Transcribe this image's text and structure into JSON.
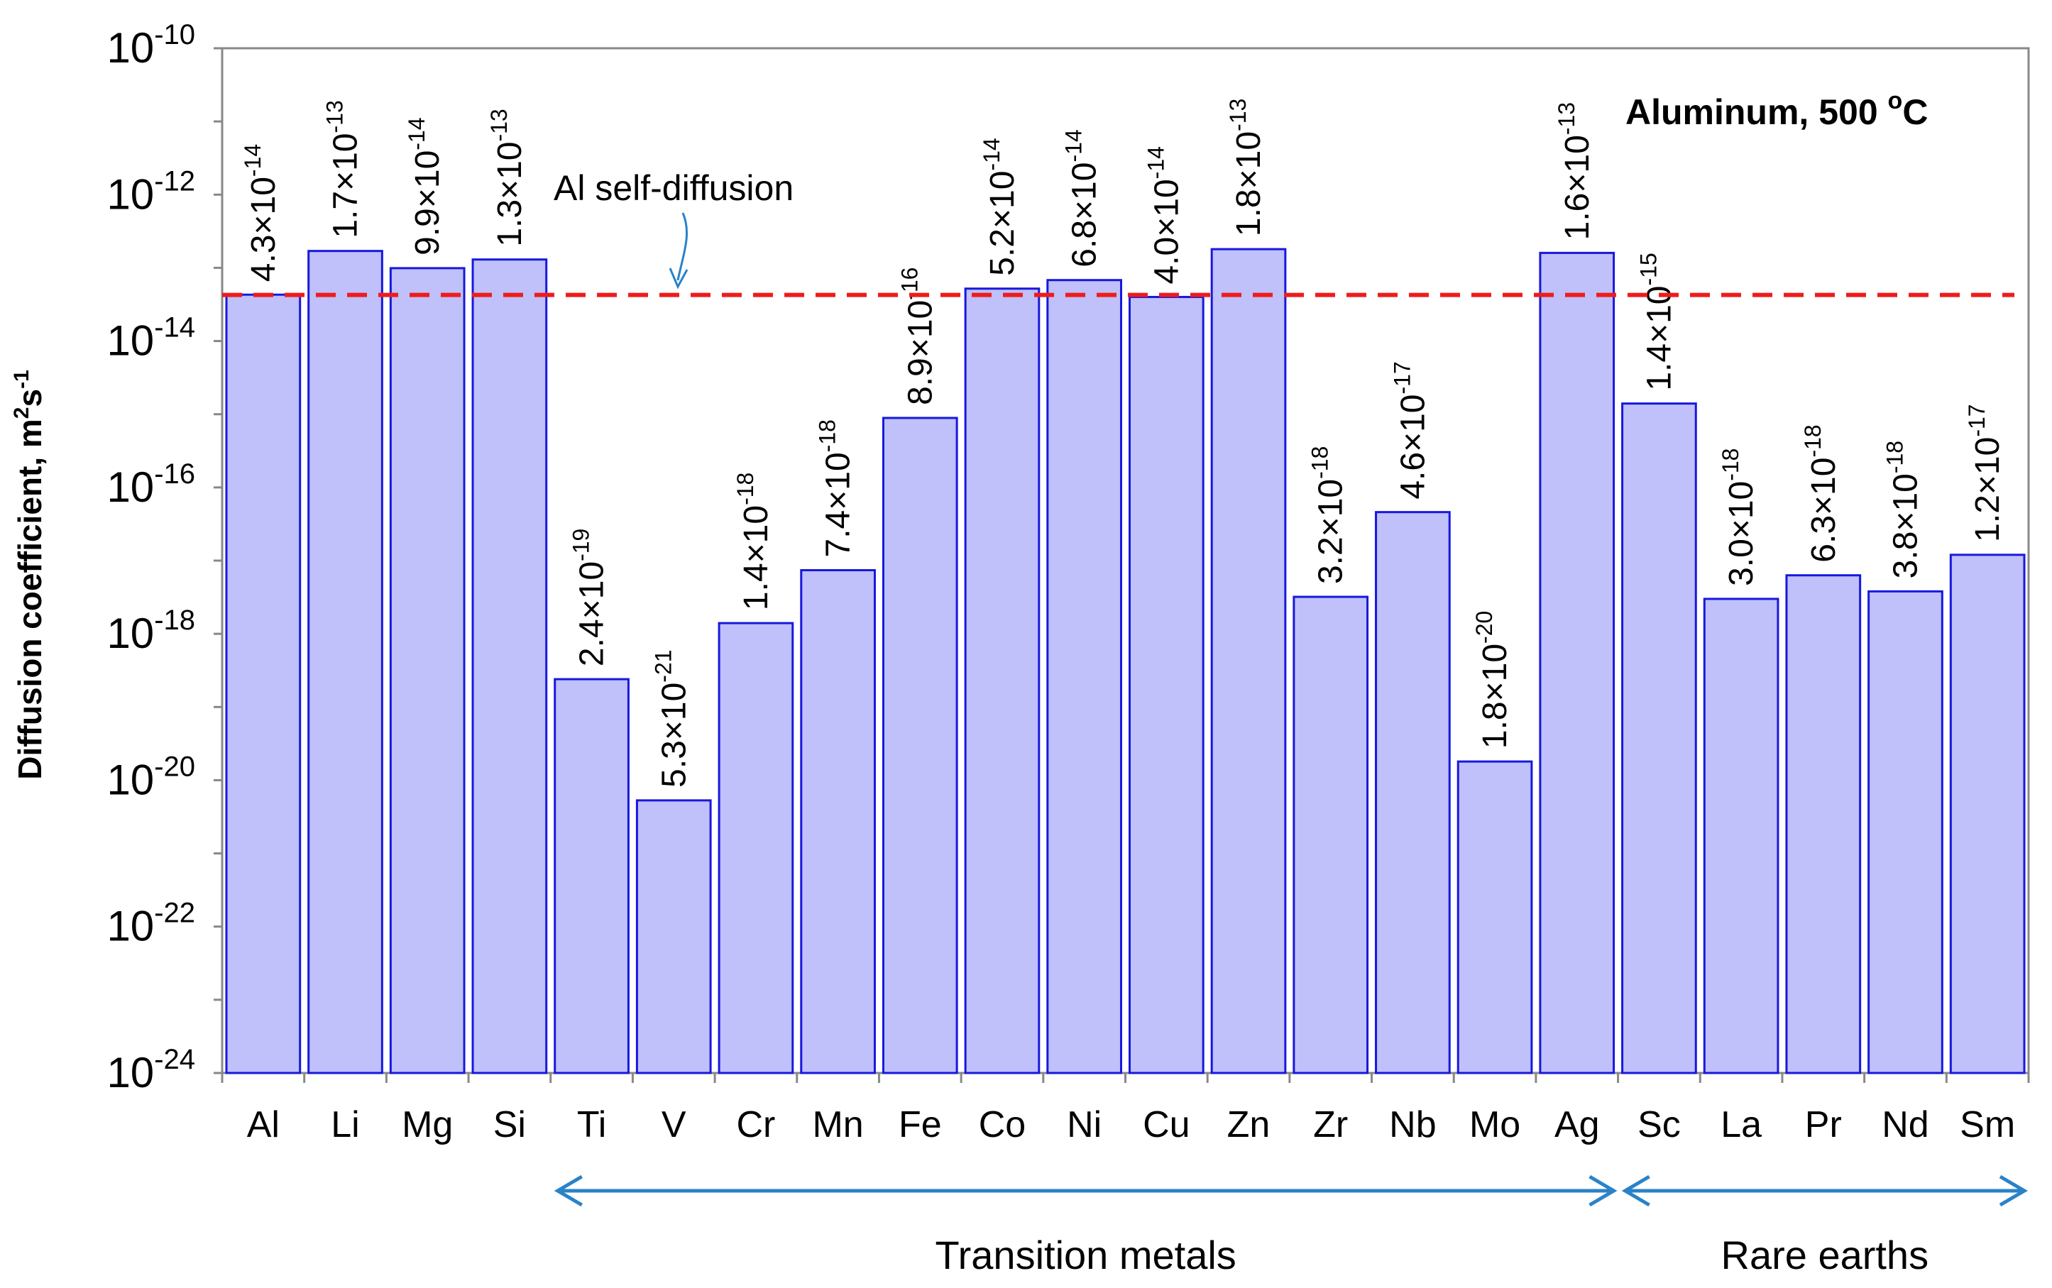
{
  "chart_data": {
    "type": "bar",
    "scale": "log10",
    "title": "Aluminum, 500 °C",
    "title_main": "Aluminum, 500 ",
    "title_degree": "o",
    "title_unit": "C",
    "ylabel": "Diffusion coefficient, m²s⁻¹",
    "ylabel_main": "Diffusion coefficient, m",
    "ylabel_sup1": "2",
    "ylabel_mid": "s",
    "ylabel_sup2": "-1",
    "ylim_exponent": [
      -24,
      -10
    ],
    "yticks": [
      {
        "base": "10",
        "exp": "-10"
      },
      {
        "base": "10",
        "exp": "-12"
      },
      {
        "base": "10",
        "exp": "-14"
      },
      {
        "base": "10",
        "exp": "-16"
      },
      {
        "base": "10",
        "exp": "-18"
      },
      {
        "base": "10",
        "exp": "-20"
      },
      {
        "base": "10",
        "exp": "-22"
      },
      {
        "base": "10",
        "exp": "-24"
      }
    ],
    "categories": [
      "Al",
      "Li",
      "Mg",
      "Si",
      "Ti",
      "V",
      "Cr",
      "Mn",
      "Fe",
      "Co",
      "Ni",
      "Cu",
      "Zn",
      "Zr",
      "Nb",
      "Mo",
      "Ag",
      "Sc",
      "La",
      "Pr",
      "Nd",
      "Sm"
    ],
    "mantissas": [
      4.3,
      1.7,
      9.9,
      1.3,
      2.4,
      5.3,
      1.4,
      7.4,
      8.9,
      5.2,
      6.8,
      4.0,
      1.8,
      3.2,
      4.6,
      1.8,
      1.6,
      1.4,
      3.0,
      6.3,
      3.8,
      1.2
    ],
    "exponents": [
      -14,
      -13,
      -14,
      -13,
      -19,
      -21,
      -18,
      -18,
      -16,
      -14,
      -14,
      -14,
      -13,
      -18,
      -17,
      -20,
      -13,
      -15,
      -18,
      -18,
      -18,
      -17
    ],
    "value_labels": [
      {
        "mantissa": "4.3×10",
        "exp": "-14"
      },
      {
        "mantissa": "1.7×10",
        "exp": "-13"
      },
      {
        "mantissa": "9.9×10",
        "exp": "-14"
      },
      {
        "mantissa": "1.3×10",
        "exp": "-13"
      },
      {
        "mantissa": "2.4×10",
        "exp": "-19"
      },
      {
        "mantissa": "5.3×10",
        "exp": "-21"
      },
      {
        "mantissa": "1.4×10",
        "exp": "-18"
      },
      {
        "mantissa": "7.4×10",
        "exp": "-18"
      },
      {
        "mantissa": "8.9×10",
        "exp": "-16"
      },
      {
        "mantissa": "5.2×10",
        "exp": "-14"
      },
      {
        "mantissa": "6.8×10",
        "exp": "-14"
      },
      {
        "mantissa": "4.0×10",
        "exp": "-14"
      },
      {
        "mantissa": "1.8×10",
        "exp": "-13"
      },
      {
        "mantissa": "3.2×10",
        "exp": "-18"
      },
      {
        "mantissa": "4.6×10",
        "exp": "-17"
      },
      {
        "mantissa": "1.8×10",
        "exp": "-20"
      },
      {
        "mantissa": "1.6×10",
        "exp": "-13"
      },
      {
        "mantissa": "1.4×10",
        "exp": "-15"
      },
      {
        "mantissa": "3.0×10",
        "exp": "-18"
      },
      {
        "mantissa": "6.3×10",
        "exp": "-18"
      },
      {
        "mantissa": "3.8×10",
        "exp": "-18"
      },
      {
        "mantissa": "1.2×10",
        "exp": "-17"
      }
    ],
    "reference_line": {
      "label": "Al self-diffusion",
      "exponent_value": -13.37,
      "style": "dashed"
    },
    "groups": [
      {
        "label": "Transition metals",
        "from_category": "Ti",
        "to_category": "Ag"
      },
      {
        "label": "Rare earths",
        "from_category": "Sc",
        "to_category": "Sm"
      }
    ],
    "grid": false,
    "colors": {
      "bar_fill": "#c0c0fa",
      "bar_stroke": "#1818dd",
      "reference_line": "#ee1c1c",
      "arrow": "#2a82c8",
      "axis": "#888888"
    }
  }
}
